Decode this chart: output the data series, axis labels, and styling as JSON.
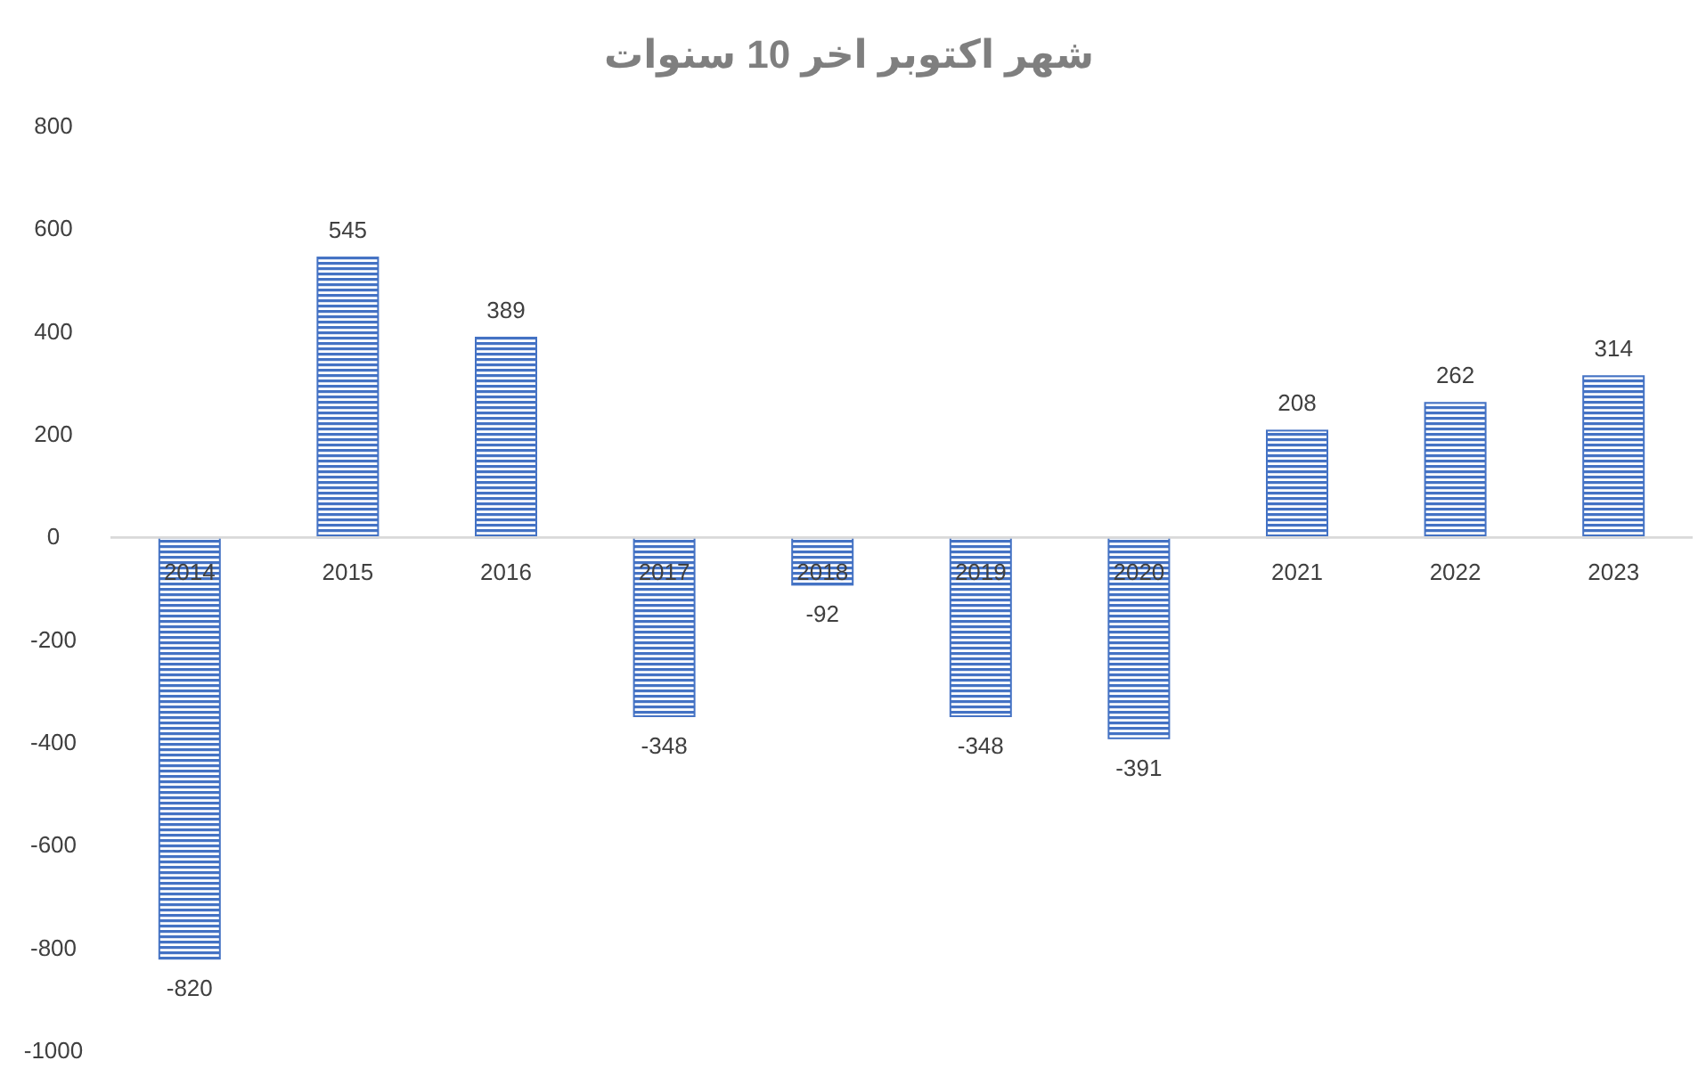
{
  "chart_data": {
    "type": "bar",
    "title": "شهر اكتوبر اخر 10 سنوات",
    "categories": [
      "2014",
      "2015",
      "2016",
      "2017",
      "2018",
      "2019",
      "2020",
      "2021",
      "2022",
      "2023"
    ],
    "values": [
      -820,
      545,
      389,
      -348,
      -92,
      -348,
      -391,
      208,
      262,
      314
    ],
    "color": "#4472c4",
    "ylim": [
      -1000,
      800
    ],
    "yticks": [
      -1000,
      -800,
      -600,
      -400,
      -200,
      0,
      200,
      400,
      600,
      800
    ],
    "data_labels": true
  }
}
